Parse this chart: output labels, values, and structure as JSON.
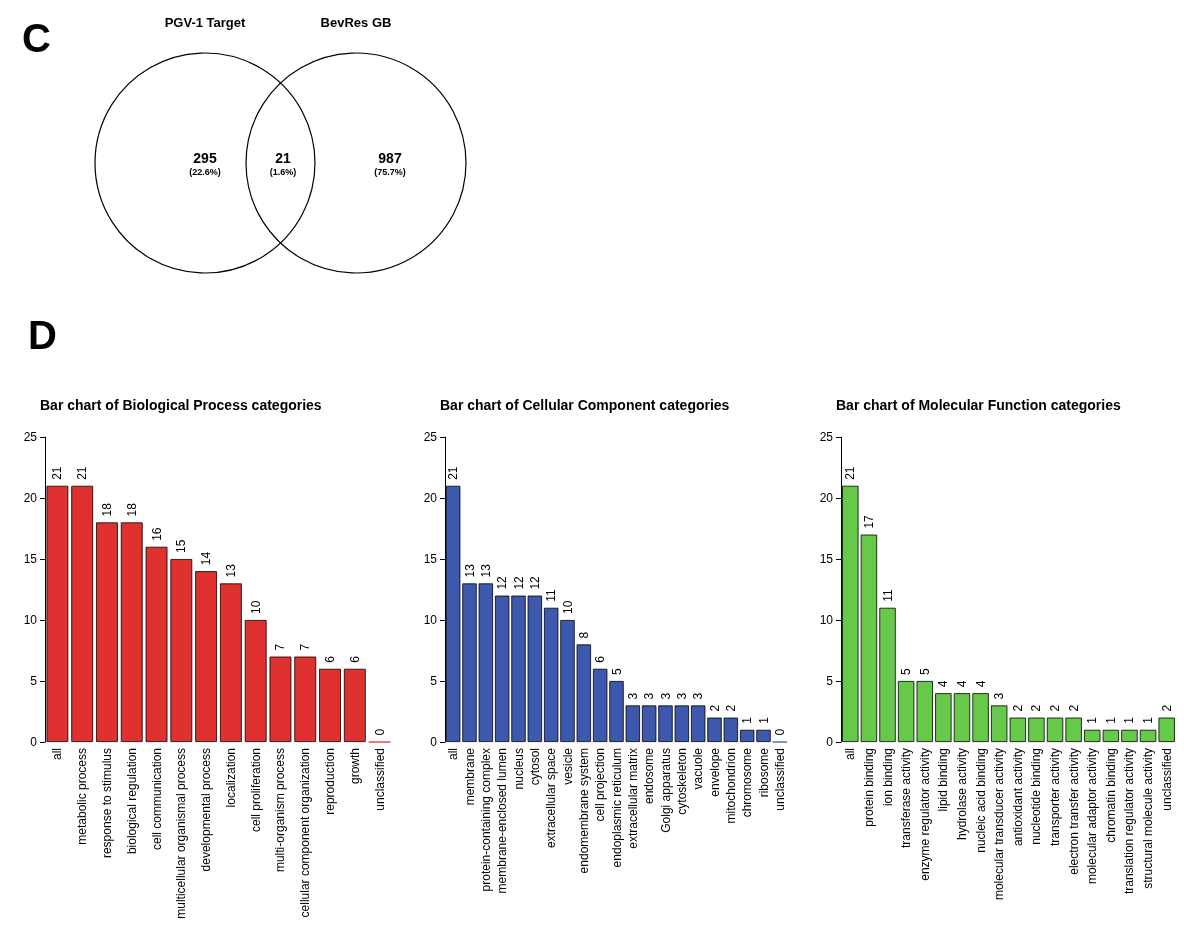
{
  "chart_data": [
    {
      "type": "other",
      "annotations": [
        "C",
        "PGV-1 Target",
        "BevRes GB",
        "(22.6%)",
        "(1.6%)",
        "(75.7%)"
      ],
      "categories": [
        null,
        null,
        null
      ],
      "values": [
        295,
        21,
        987
      ],
      "data_labels": true
    },
    {
      "type": "bar",
      "title": "Bar chart of Biological Process categories",
      "annotations": [
        "D"
      ],
      "categories": [
        "all",
        "metabolic process",
        "response to stimulus",
        "biological regulation",
        "cell communication",
        "multicellular organismal process",
        "developmental process",
        "localization",
        "cell proliferation",
        "multi-organism process",
        "cellular component organization",
        "reproduction",
        "growth",
        "unclassified"
      ],
      "values": [
        21,
        21,
        18,
        18,
        16,
        15,
        14,
        13,
        10,
        7,
        7,
        6,
        6,
        0
      ],
      "color": "#e03131",
      "ylim": [
        0,
        25
      ],
      "yticks": [
        0,
        5,
        10,
        15,
        20,
        25
      ],
      "data_labels": true,
      "grid": false
    },
    {
      "type": "bar",
      "title": "Bar chart of Cellular Component categories",
      "categories": [
        "all",
        "membrane",
        "protein-containing complex",
        "membrane-enclosed lumen",
        "nucleus",
        "cytosol",
        "extracellular space",
        "vesicle",
        "endomembrane system",
        "cell projection",
        "endoplasmic reticulum",
        "extracellular matrix",
        "endosome",
        "Golgi apparatus",
        "cytoskeleton",
        "vacuole",
        "envelope",
        "mitochondrion",
        "chromosome",
        "ribosome",
        "unclassified"
      ],
      "values": [
        21,
        13,
        13,
        12,
        12,
        12,
        11,
        10,
        8,
        6,
        5,
        3,
        3,
        3,
        3,
        3,
        2,
        2,
        1,
        1,
        0
      ],
      "color": "#3d59ad",
      "ylim": [
        0,
        25
      ],
      "yticks": [
        0,
        5,
        10,
        15,
        20,
        25
      ],
      "data_labels": true,
      "grid": false
    },
    {
      "type": "bar",
      "title": "Bar chart of Molecular Function categories",
      "categories": [
        "all",
        "protein binding",
        "ion binding",
        "transferase activity",
        "enzyme regulator activity",
        "lipid binding",
        "hydrolase activity",
        "nucleic acid binding",
        "molecular transducer activity",
        "antioxidant activity",
        "nucleotide binding",
        "transporter activity",
        "electron transfer activity",
        "molecular adaptor activity",
        "chromatin binding",
        "translation regulator activity",
        "structural molecule activity",
        "unclassified"
      ],
      "values": [
        21,
        17,
        11,
        5,
        5,
        4,
        4,
        4,
        3,
        2,
        2,
        2,
        2,
        1,
        1,
        1,
        1,
        2
      ],
      "color": "#66c94a",
      "ylim": [
        0,
        25
      ],
      "yticks": [
        0,
        5,
        10,
        15,
        20,
        25
      ],
      "data_labels": true,
      "grid": false
    }
  ]
}
